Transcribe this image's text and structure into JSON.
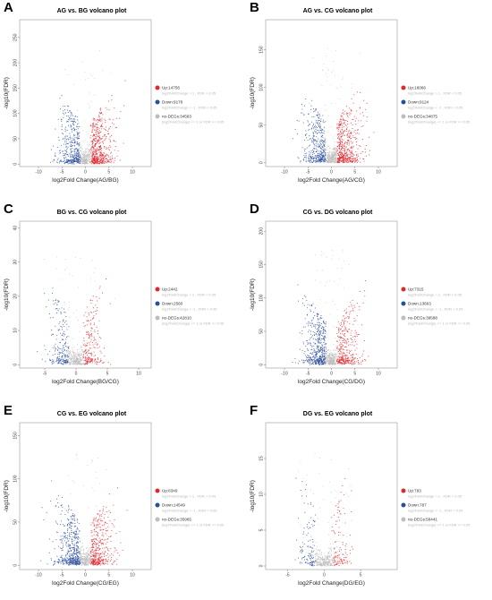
{
  "colors": {
    "up": "#e3262d",
    "down": "#2a4d9c",
    "no": "#bdbdbd"
  },
  "chart_data": [
    {
      "letter": "A",
      "type": "scatter",
      "title": "AG vs. BG volcano plot",
      "xlabel": "log2Fold Change(AG/BG)",
      "ylabel": "-log10(FDR)",
      "xlim": [
        -14,
        14
      ],
      "ylim": [
        -5,
        285
      ],
      "xticks": [
        "-10",
        "-5",
        "0",
        "5",
        "10"
      ],
      "xtick_values": [
        -10,
        -5,
        0,
        5,
        10
      ],
      "yticks": [
        "0",
        "50",
        "100",
        "150",
        "200",
        "250"
      ],
      "ytick_values": [
        0,
        50,
        100,
        150,
        200,
        250
      ],
      "legend": [
        {
          "label": "Up:14756",
          "note": "log2FoldChange > 1 , FDR < 0.05"
        },
        {
          "label": "Down:9178",
          "note": "log2FoldChange < -1 , FDR < 0.05"
        },
        {
          "label": "no-DEGs:34583",
          "note": "|log2FoldChange| <= 1 or FDR >= 0.05"
        }
      ],
      "series": [
        {
          "count": 14756,
          "spread": 3.2,
          "reach": 11
        },
        {
          "count": 9178,
          "spread": 2.9,
          "reach": 11
        }
      ]
    },
    {
      "letter": "B",
      "type": "scatter",
      "title": "AG vs. CG volcano plot",
      "xlabel": "log2Fold Change(AG/CG)",
      "ylabel": "-log10(FDR)",
      "xlim": [
        -14,
        14
      ],
      "ylim": [
        -5,
        190
      ],
      "xticks": [
        "-10",
        "-5",
        "0",
        "5",
        "10"
      ],
      "xtick_values": [
        -10,
        -5,
        0,
        5,
        10
      ],
      "yticks": [
        "0",
        "50",
        "100",
        "150"
      ],
      "ytick_values": [
        0,
        50,
        100,
        150
      ],
      "legend": [
        {
          "label": "Up:16066",
          "note": "log2FoldChange > 1 , FDR < 0.05"
        },
        {
          "label": "Down:9124",
          "note": "log2FoldChange < -1 , FDR < 0.05"
        },
        {
          "label": "no-DEGs:34875",
          "note": "|log2FoldChange| <= 1 or FDR >= 0.05"
        }
      ],
      "series": [
        {
          "count": 16066,
          "spread": 3.2,
          "reach": 11
        },
        {
          "count": 9124,
          "spread": 3.0,
          "reach": 11
        }
      ]
    },
    {
      "letter": "C",
      "type": "scatter",
      "title": "BG vs. CG volcano plot",
      "xlabel": "log2Fold Change(BG/CG)",
      "ylabel": "-log10(FDR)",
      "xlim": [
        -9,
        12
      ],
      "ylim": [
        -1,
        42
      ],
      "xticks": [
        "-5",
        "0",
        "5",
        "10"
      ],
      "xtick_values": [
        -5,
        0,
        5,
        10
      ],
      "yticks": [
        "0",
        "10",
        "20",
        "30",
        "40"
      ],
      "ytick_values": [
        0,
        10,
        20,
        30,
        40
      ],
      "legend": [
        {
          "label": "Up:2442",
          "note": "log2FoldChange > 1 , FDR < 0.05"
        },
        {
          "label": "Down:2560",
          "note": "log2FoldChange < -1 , FDR < 0.05"
        },
        {
          "label": "no-DEGs:42810",
          "note": "|log2FoldChange| <= 1 or FDR >= 0.05"
        }
      ],
      "series": [
        {
          "count": 2442,
          "spread": 1.8,
          "reach": 6
        },
        {
          "count": 2560,
          "spread": 2.0,
          "reach": 7
        }
      ]
    },
    {
      "letter": "D",
      "type": "scatter",
      "title": "CG vs. DG volcano plot",
      "xlabel": "log2Fold Change(CG/DG)",
      "ylabel": "-log10(FDR)",
      "xlim": [
        -14,
        14
      ],
      "ylim": [
        -5,
        215
      ],
      "xticks": [
        "-10",
        "-5",
        "0",
        "5",
        "10"
      ],
      "xtick_values": [
        -10,
        -5,
        0,
        5,
        10
      ],
      "yticks": [
        "0",
        "50",
        "100",
        "150",
        "200"
      ],
      "ytick_values": [
        0,
        50,
        100,
        150,
        200
      ],
      "legend": [
        {
          "label": "Up:7315",
          "note": "log2FoldChange > 1 , FDR < 0.05"
        },
        {
          "label": "Down:13663",
          "note": "log2FoldChange < -1 , FDR < 0.05"
        },
        {
          "label": "no-DEGs:39588",
          "note": "|log2FoldChange| <= 1 or FDR >= 0.05"
        }
      ],
      "series": [
        {
          "count": 7315,
          "spread": 3.0,
          "reach": 11
        },
        {
          "count": 13663,
          "spread": 3.2,
          "reach": 11
        }
      ]
    },
    {
      "letter": "E",
      "type": "scatter",
      "title": "CG vs. EG volcano plot",
      "xlabel": "log2Fold Change(CG/EG)",
      "ylabel": "-log10(FDR)",
      "xlim": [
        -14,
        14
      ],
      "ylim": [
        -5,
        165
      ],
      "xticks": [
        "-10",
        "-5",
        "0",
        "5",
        "10"
      ],
      "xtick_values": [
        -10,
        -5,
        0,
        5,
        10
      ],
      "yticks": [
        "0",
        "50",
        "100",
        "150"
      ],
      "ytick_values": [
        0,
        50,
        100,
        150
      ],
      "legend": [
        {
          "label": "Up:8349",
          "note": "log2FoldChange > 1 , FDR < 0.05"
        },
        {
          "label": "Down:14549",
          "note": "log2FoldChange < -1 , FDR < 0.05"
        },
        {
          "label": "no-DEGs:35965",
          "note": "|log2FoldChange| <= 1 or FDR >= 0.05"
        }
      ],
      "series": [
        {
          "count": 8349,
          "spread": 3.0,
          "reach": 11
        },
        {
          "count": 14549,
          "spread": 3.2,
          "reach": 11
        }
      ]
    },
    {
      "letter": "F",
      "type": "scatter",
      "title": "DG vs. EG volcano plot",
      "xlabel": "log2Fold Change(DG/EG)",
      "ylabel": "-log10(FDR)",
      "xlim": [
        -8,
        10
      ],
      "ylim": [
        -0.5,
        20
      ],
      "xticks": [
        "-5",
        "0",
        "5"
      ],
      "xtick_values": [
        -5,
        0,
        5
      ],
      "yticks": [
        "0",
        "5",
        "10",
        "15"
      ],
      "ytick_values": [
        0,
        5,
        10,
        15
      ],
      "legend": [
        {
          "label": "Up:793",
          "note": "log2FoldChange > 1 , FDR < 0.05"
        },
        {
          "label": "Down:787",
          "note": "log2FoldChange < -1 , FDR < 0.05"
        },
        {
          "label": "no-DEGs:58441",
          "note": "|log2FoldChange| <= 1 or FDR >= 0.05"
        }
      ],
      "series": [
        {
          "count": 793,
          "spread": 1.6,
          "reach": 4
        },
        {
          "count": 787,
          "spread": 1.6,
          "reach": 4
        }
      ]
    }
  ]
}
